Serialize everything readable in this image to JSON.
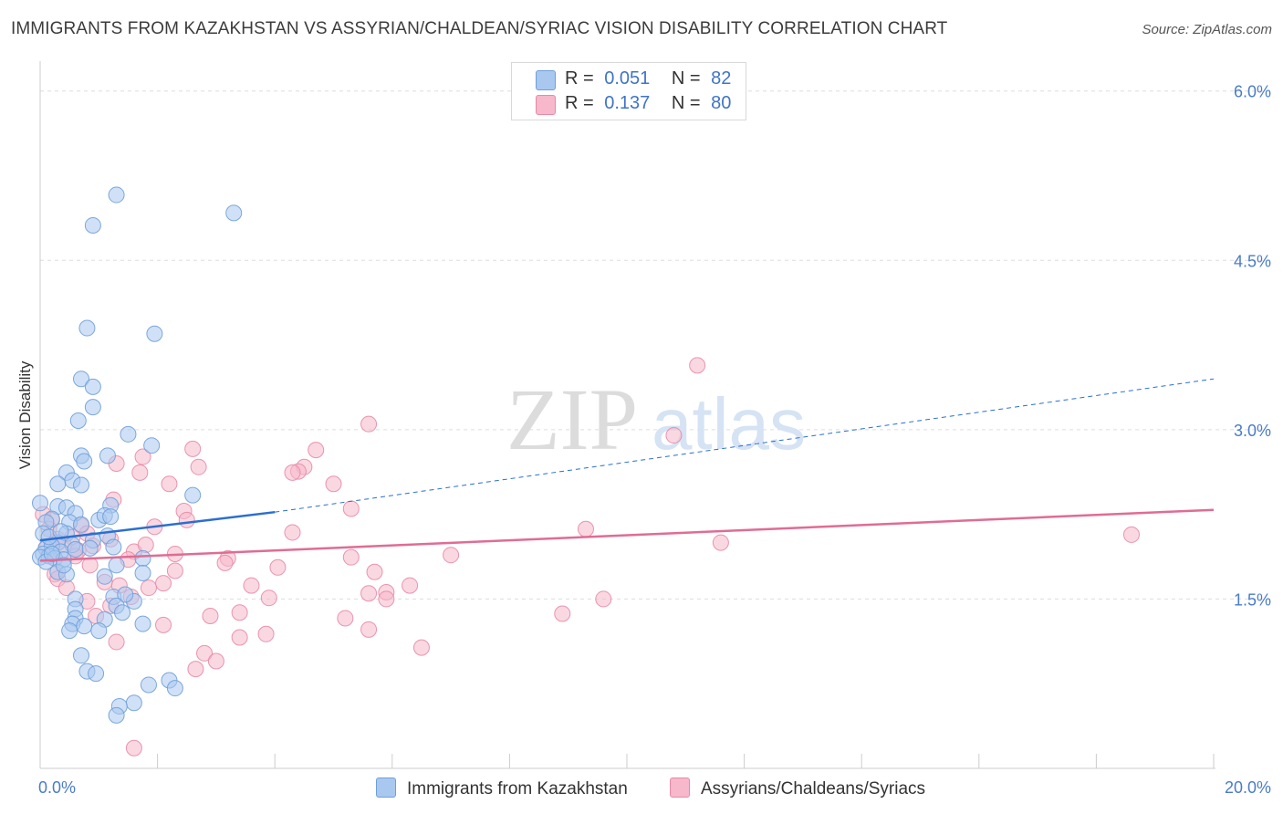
{
  "title": "IMMIGRANTS FROM KAZAKHSTAN VS ASSYRIAN/CHALDEAN/SYRIAC VISION DISABILITY CORRELATION CHART",
  "source": "Source: ZipAtlas.com",
  "watermark": {
    "zip": "ZIP",
    "atlas": "atlas"
  },
  "colors": {
    "blue_fill": "#a9c8f0",
    "blue_stroke": "#6f9fd8",
    "blue_line": "#2b6fd0",
    "pink_fill": "#f6b8ca",
    "pink_stroke": "#e889a6",
    "pink_line": "#e06c94",
    "tick_text": "#4a7cc9",
    "grid": "#dddddd"
  },
  "legend": {
    "series1": {
      "r_label": "R =",
      "r_value": "0.051",
      "n_label": "N =",
      "n_value": "82"
    },
    "series2": {
      "r_label": "R =",
      "r_value": "0.137",
      "n_label": "N =",
      "n_value": "80"
    }
  },
  "chart_data": {
    "type": "scatter",
    "title": "IMMIGRANTS FROM KAZAKHSTAN VS ASSYRIAN/CHALDEAN/SYRIAC VISION DISABILITY CORRELATION CHART",
    "xlabel": "",
    "ylabel": "Vision Disability",
    "xlim": [
      0,
      20
    ],
    "ylim": [
      0,
      6.2
    ],
    "x_tick_labels": [
      "0.0%",
      "20.0%"
    ],
    "y_ticks": [
      1.5,
      3.0,
      4.5,
      6.0
    ],
    "y_tick_labels": [
      "1.5%",
      "3.0%",
      "4.5%",
      "6.0%"
    ],
    "legend_position": "top-center",
    "series": [
      {
        "name": "Immigrants from Kazakhstan",
        "color": "blue",
        "r": 0.051,
        "n": 82,
        "trend": {
          "x0": 0,
          "y0": 2.02,
          "x1": 4.0,
          "y1": 2.27,
          "dashed_to_x": 20,
          "dashed_to_y": 3.45
        },
        "points": [
          [
            1.3,
            5.08
          ],
          [
            0.9,
            4.81
          ],
          [
            3.3,
            4.92
          ],
          [
            0.8,
            3.9
          ],
          [
            1.95,
            3.85
          ],
          [
            0.7,
            3.45
          ],
          [
            0.9,
            3.38
          ],
          [
            0.9,
            3.2
          ],
          [
            0.65,
            3.08
          ],
          [
            1.5,
            2.96
          ],
          [
            1.9,
            2.86
          ],
          [
            0.7,
            2.77
          ],
          [
            1.15,
            2.77
          ],
          [
            0.75,
            2.72
          ],
          [
            0.45,
            2.62
          ],
          [
            0.55,
            2.55
          ],
          [
            0.3,
            2.52
          ],
          [
            0.7,
            2.51
          ],
          [
            2.6,
            2.42
          ],
          [
            0.0,
            2.35
          ],
          [
            0.3,
            2.32
          ],
          [
            0.45,
            2.31
          ],
          [
            1.2,
            2.33
          ],
          [
            0.6,
            2.26
          ],
          [
            1.0,
            2.2
          ],
          [
            1.1,
            2.24
          ],
          [
            0.2,
            2.21
          ],
          [
            0.5,
            2.18
          ],
          [
            0.7,
            2.16
          ],
          [
            0.1,
            2.18
          ],
          [
            1.2,
            2.23
          ],
          [
            0.45,
            2.08
          ],
          [
            0.9,
            2.02
          ],
          [
            0.05,
            2.08
          ],
          [
            1.15,
            2.06
          ],
          [
            0.3,
            2.0
          ],
          [
            0.1,
            1.95
          ],
          [
            0.2,
            1.97
          ],
          [
            0.55,
            1.98
          ],
          [
            0.35,
            1.92
          ],
          [
            0.6,
            1.94
          ],
          [
            0.05,
            1.9
          ],
          [
            0.15,
            1.88
          ],
          [
            0.25,
            1.86
          ],
          [
            0.4,
            1.85
          ],
          [
            0.0,
            1.87
          ],
          [
            0.1,
            1.83
          ],
          [
            0.3,
            1.74
          ],
          [
            0.45,
            1.72
          ],
          [
            1.3,
            1.8
          ],
          [
            1.1,
            1.7
          ],
          [
            1.75,
            1.86
          ],
          [
            1.75,
            1.73
          ],
          [
            0.6,
            1.5
          ],
          [
            1.25,
            1.52
          ],
          [
            1.6,
            1.48
          ],
          [
            1.45,
            1.54
          ],
          [
            1.3,
            1.44
          ],
          [
            0.6,
            1.41
          ],
          [
            1.4,
            1.38
          ],
          [
            0.6,
            1.33
          ],
          [
            1.1,
            1.32
          ],
          [
            0.55,
            1.28
          ],
          [
            0.75,
            1.26
          ],
          [
            1.75,
            1.28
          ],
          [
            0.5,
            1.22
          ],
          [
            1.0,
            1.22
          ],
          [
            0.7,
            1.0
          ],
          [
            0.8,
            0.86
          ],
          [
            0.95,
            0.84
          ],
          [
            2.2,
            0.78
          ],
          [
            1.85,
            0.74
          ],
          [
            2.3,
            0.71
          ],
          [
            1.6,
            0.58
          ],
          [
            1.35,
            0.55
          ],
          [
            1.3,
            0.47
          ],
          [
            0.15,
            2.05
          ],
          [
            0.35,
            2.1
          ],
          [
            0.85,
            1.95
          ],
          [
            1.25,
            1.96
          ],
          [
            0.4,
            1.8
          ],
          [
            0.2,
            1.9
          ]
        ]
      },
      {
        "name": "Assyrians/Chaldeans/Syriacs",
        "color": "pink",
        "r": 0.137,
        "n": 80,
        "trend": {
          "x0": 0,
          "y0": 1.84,
          "x1": 20,
          "y1": 2.29
        },
        "points": [
          [
            11.2,
            3.57
          ],
          [
            5.6,
            3.05
          ],
          [
            10.8,
            2.95
          ],
          [
            1.75,
            2.76
          ],
          [
            2.6,
            2.83
          ],
          [
            4.7,
            2.82
          ],
          [
            1.3,
            2.7
          ],
          [
            2.7,
            2.67
          ],
          [
            4.5,
            2.67
          ],
          [
            4.4,
            2.63
          ],
          [
            4.3,
            2.62
          ],
          [
            1.7,
            2.62
          ],
          [
            2.2,
            2.52
          ],
          [
            5.0,
            2.52
          ],
          [
            1.25,
            2.38
          ],
          [
            5.3,
            2.3
          ],
          [
            2.45,
            2.28
          ],
          [
            0.05,
            2.25
          ],
          [
            0.2,
            2.2
          ],
          [
            2.5,
            2.2
          ],
          [
            0.7,
            2.15
          ],
          [
            1.95,
            2.14
          ],
          [
            9.3,
            2.12
          ],
          [
            4.3,
            2.09
          ],
          [
            18.6,
            2.07
          ],
          [
            0.8,
            2.08
          ],
          [
            0.55,
            2.05
          ],
          [
            1.2,
            2.03
          ],
          [
            0.3,
            2.03
          ],
          [
            0.9,
            1.97
          ],
          [
            11.6,
            2.0
          ],
          [
            0.4,
            1.98
          ],
          [
            0.65,
            1.93
          ],
          [
            1.6,
            1.92
          ],
          [
            2.3,
            1.9
          ],
          [
            7.0,
            1.89
          ],
          [
            5.3,
            1.87
          ],
          [
            3.2,
            1.86
          ],
          [
            1.5,
            1.85
          ],
          [
            3.15,
            1.82
          ],
          [
            0.85,
            1.8
          ],
          [
            4.05,
            1.78
          ],
          [
            5.7,
            1.74
          ],
          [
            0.25,
            1.72
          ],
          [
            0.3,
            1.68
          ],
          [
            1.1,
            1.65
          ],
          [
            1.35,
            1.62
          ],
          [
            2.1,
            1.64
          ],
          [
            3.6,
            1.62
          ],
          [
            6.3,
            1.62
          ],
          [
            1.85,
            1.6
          ],
          [
            0.45,
            1.6
          ],
          [
            5.6,
            1.55
          ],
          [
            5.9,
            1.56
          ],
          [
            1.55,
            1.52
          ],
          [
            3.9,
            1.51
          ],
          [
            5.9,
            1.5
          ],
          [
            9.6,
            1.5
          ],
          [
            0.8,
            1.48
          ],
          [
            1.2,
            1.44
          ],
          [
            3.4,
            1.38
          ],
          [
            8.9,
            1.37
          ],
          [
            2.9,
            1.35
          ],
          [
            5.2,
            1.33
          ],
          [
            0.95,
            1.35
          ],
          [
            2.1,
            1.27
          ],
          [
            5.6,
            1.23
          ],
          [
            3.85,
            1.19
          ],
          [
            3.4,
            1.16
          ],
          [
            1.3,
            1.12
          ],
          [
            6.5,
            1.07
          ],
          [
            2.8,
            1.02
          ],
          [
            3.0,
            0.95
          ],
          [
            2.65,
            0.88
          ],
          [
            1.6,
            0.18
          ],
          [
            0.1,
            1.95
          ],
          [
            0.6,
            1.88
          ],
          [
            0.15,
            2.12
          ],
          [
            1.8,
            1.98
          ],
          [
            2.3,
            1.75
          ]
        ]
      }
    ]
  }
}
